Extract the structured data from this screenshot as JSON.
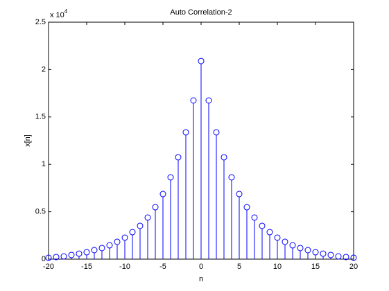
{
  "chart_data": {
    "type": "stem",
    "title": "Auto Correlation-2",
    "x_label": "n",
    "y_label": "x[n]",
    "y_multiplier": {
      "base": "x 10",
      "exponent": "4"
    },
    "x": [
      -20,
      -19,
      -18,
      -17,
      -16,
      -15,
      -14,
      -13,
      -12,
      -11,
      -10,
      -9,
      -8,
      -7,
      -6,
      -5,
      -4,
      -3,
      -2,
      -1,
      0,
      1,
      2,
      3,
      4,
      5,
      6,
      7,
      8,
      9,
      10,
      11,
      12,
      13,
      14,
      15,
      16,
      17,
      18,
      19,
      20
    ],
    "values": [
      0.015,
      0.022,
      0.029,
      0.044,
      0.058,
      0.073,
      0.095,
      0.117,
      0.146,
      0.183,
      0.227,
      0.285,
      0.351,
      0.439,
      0.548,
      0.687,
      0.863,
      1.075,
      1.338,
      1.674,
      2.09,
      1.674,
      1.338,
      1.075,
      0.863,
      0.687,
      0.548,
      0.439,
      0.351,
      0.285,
      0.227,
      0.183,
      0.146,
      0.117,
      0.095,
      0.073,
      0.058,
      0.044,
      0.029,
      0.022,
      0.015
    ],
    "color": "#0000ff",
    "xlim": [
      -20,
      20
    ],
    "xticks": [
      -20,
      -15,
      -10,
      -5,
      0,
      5,
      10,
      15,
      20
    ],
    "ylim": [
      0,
      2.5
    ],
    "yticks": [
      0,
      0.5,
      1,
      1.5,
      2,
      2.5
    ]
  }
}
